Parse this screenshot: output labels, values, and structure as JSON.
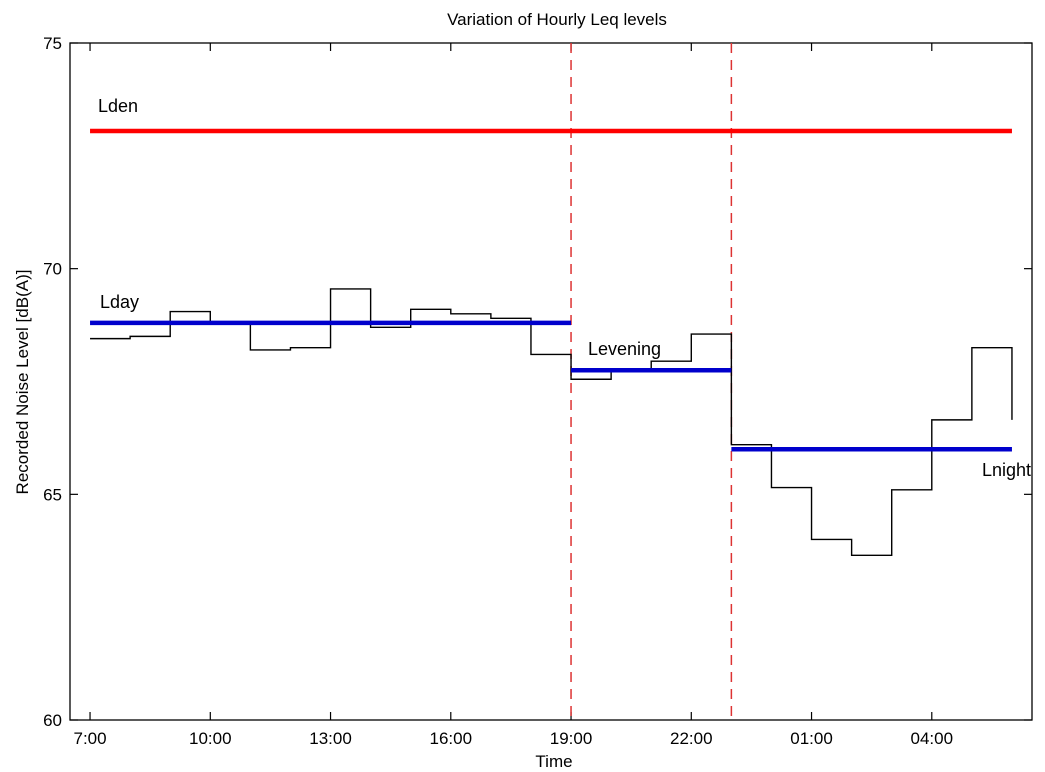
{
  "chart_data": {
    "type": "line",
    "title": "Variation of Hourly Leq levels",
    "xlabel": "Time",
    "ylabel": "Recorded Noise Level [dB(A)]",
    "xlim": [
      6.5,
      30.5
    ],
    "ylim": [
      60,
      75
    ],
    "xticks": [
      7,
      10,
      13,
      16,
      19,
      22,
      25,
      28
    ],
    "xtick_labels": [
      "7:00",
      "10:00",
      "13:00",
      "16:00",
      "19:00",
      "22:00",
      "01:00",
      "04:00"
    ],
    "yticks": [
      60,
      65,
      70,
      75
    ],
    "ytick_labels": [
      "60",
      "65",
      "70",
      "75"
    ],
    "grid": false,
    "colors": {
      "hourly": "#000000",
      "lden": "#ff0000",
      "lperiod": "#0000cc",
      "divider": "#dd3333"
    },
    "hourly_leq": {
      "x": [
        7,
        8,
        9,
        10,
        11,
        12,
        13,
        14,
        15,
        16,
        17,
        18,
        19,
        20,
        21,
        22,
        23,
        24,
        25,
        26,
        27,
        28,
        29,
        30
      ],
      "values": [
        68.45,
        68.5,
        69.05,
        68.8,
        68.2,
        68.25,
        69.55,
        68.7,
        69.1,
        69.0,
        68.9,
        68.1,
        67.55,
        67.75,
        67.95,
        68.55,
        66.1,
        65.15,
        64.0,
        63.65,
        65.1,
        66.65,
        68.25,
        68.25
      ]
    },
    "lden": {
      "label": "Lden",
      "value": 73.05,
      "x_start": 7,
      "x_end": 30
    },
    "levels": [
      {
        "label": "Lday",
        "value": 68.8,
        "x_start": 7,
        "x_end": 19
      },
      {
        "label": "Levening",
        "value": 67.75,
        "x_start": 19,
        "x_end": 23
      },
      {
        "label": "Lnight",
        "value": 66.0,
        "x_start": 23,
        "x_end": 30
      }
    ],
    "period_boundaries": [
      19,
      23
    ]
  }
}
